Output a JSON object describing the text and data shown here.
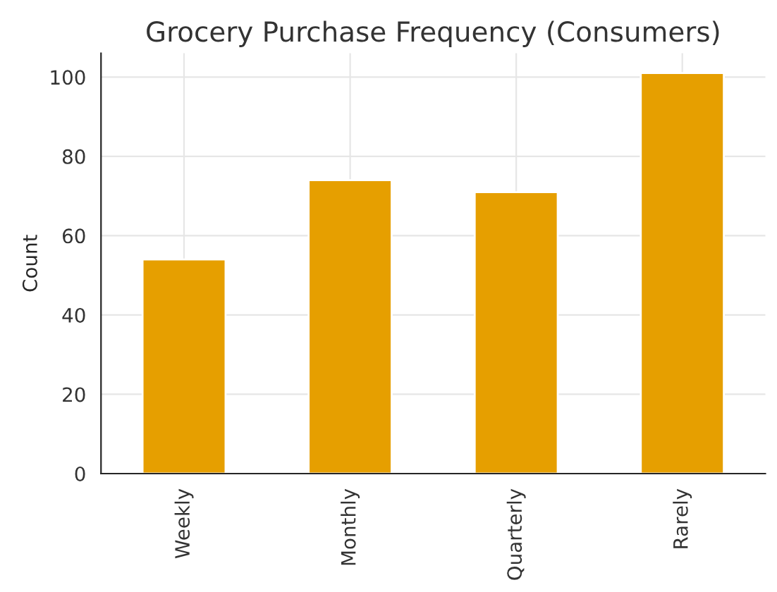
{
  "chart_data": {
    "type": "bar",
    "title": "Grocery Purchase Frequency (Consumers)",
    "ylabel": "Count",
    "categories": [
      "Weekly",
      "Monthly",
      "Quarterly",
      "Rarely"
    ],
    "values": [
      54,
      74,
      71,
      101
    ],
    "color": "#e69f00",
    "ylim": [
      0,
      106
    ],
    "yticks": [
      0,
      20,
      40,
      60,
      80,
      100
    ],
    "grid": true
  }
}
